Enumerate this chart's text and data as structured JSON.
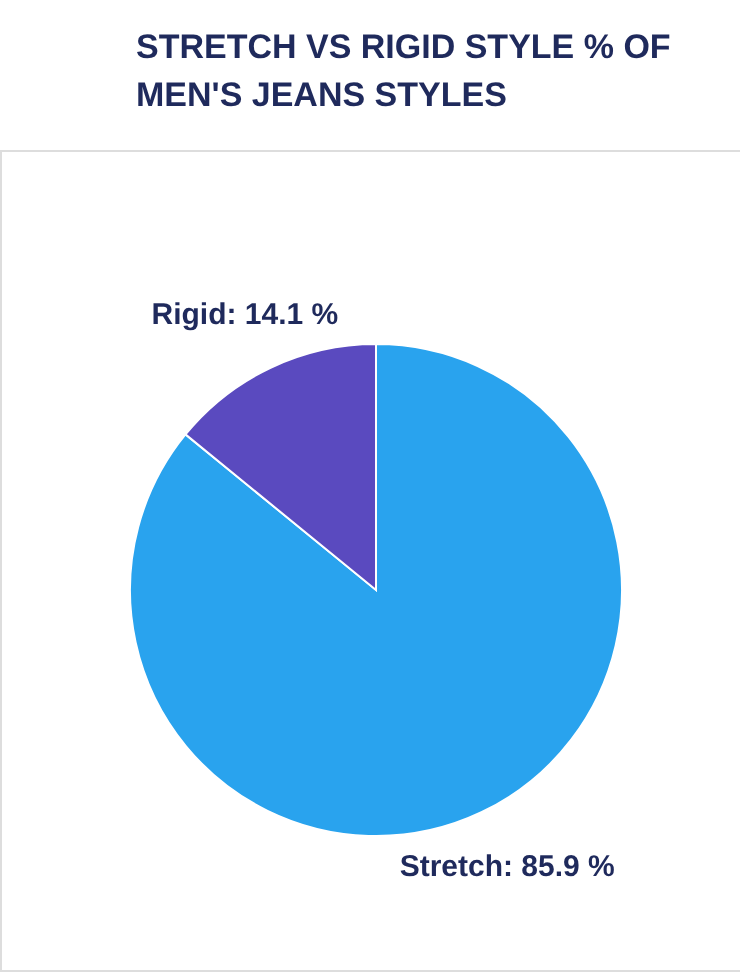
{
  "chart_data": {
    "type": "pie",
    "title": "STRETCH VS RIGID STYLE % OF\nMEN'S JEANS STYLES",
    "categories": [
      "Stretch",
      "Rigid"
    ],
    "values": [
      85.9,
      14.1
    ],
    "colors": [
      "#29a3ee",
      "#5a4abf"
    ],
    "value_labels": [
      "85.9 %",
      "14.1 %"
    ],
    "legend": false
  }
}
